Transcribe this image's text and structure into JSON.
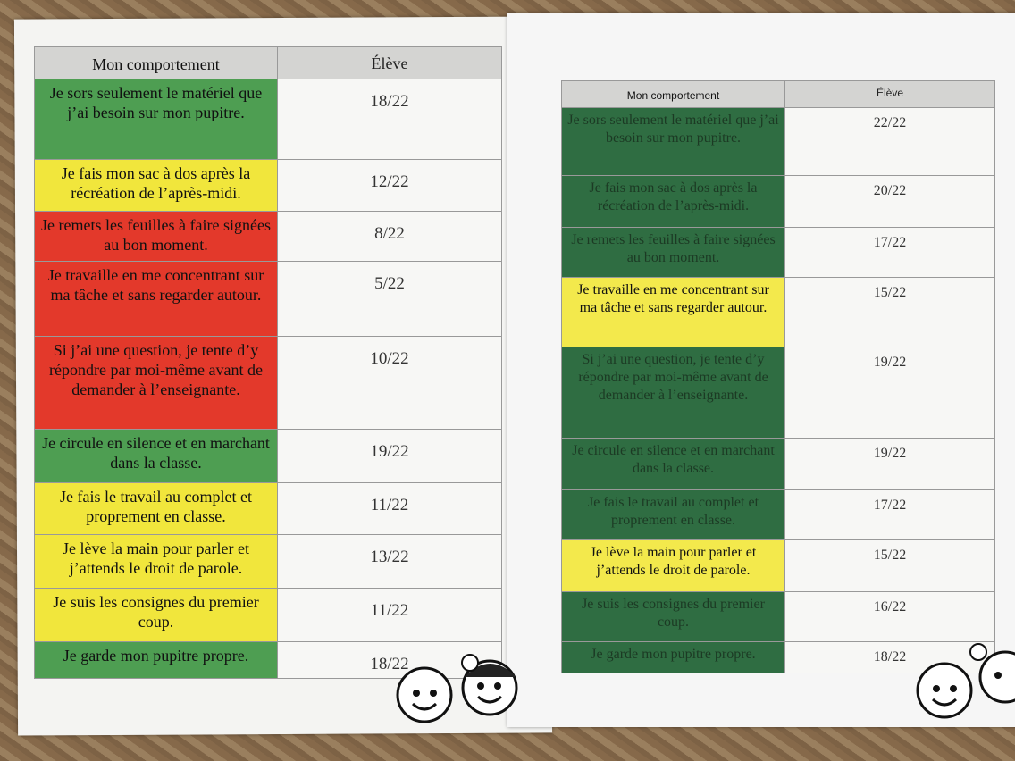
{
  "colors": {
    "green_left": "#4e9e52",
    "yellow": "#f1e63c",
    "red": "#e3392b",
    "green_right": "#2f6d42",
    "yellow_right": "#f3e94c"
  },
  "left_sheet": {
    "headers": {
      "behavior": "Mon comportement",
      "student": "Élève"
    },
    "rows": [
      {
        "behavior": "Je sors seulement le matériel que j’ai besoin sur mon pupitre.",
        "score": "18/22",
        "status": "green"
      },
      {
        "behavior": "Je fais mon sac à dos après la récréation de l’après-midi.",
        "score": "12/22",
        "status": "yellow"
      },
      {
        "behavior": "Je remets les feuilles à faire signées au bon moment.",
        "score": "8/22",
        "status": "red"
      },
      {
        "behavior": "Je travaille en me concentrant sur ma tâche et sans regarder autour.",
        "score": "5/22",
        "status": "red"
      },
      {
        "behavior": "Si j’ai une question, je tente d’y répondre par moi-même avant de demander à l’enseignante.",
        "score": "10/22",
        "status": "red"
      },
      {
        "behavior": "Je circule en silence et en marchant dans la classe.",
        "score": "19/22",
        "status": "green"
      },
      {
        "behavior": "Je fais le travail au complet et proprement en classe.",
        "score": "11/22",
        "status": "yellow"
      },
      {
        "behavior": "Je lève la main pour parler et j’attends le droit de parole.",
        "score": "13/22",
        "status": "yellow"
      },
      {
        "behavior": "Je suis les consignes du premier coup.",
        "score": "11/22",
        "status": "yellow"
      },
      {
        "behavior": "Je garde mon pupitre propre.",
        "score": "18/22",
        "status": "green"
      }
    ]
  },
  "right_sheet": {
    "headers": {
      "behavior": "Mon comportement",
      "student": "Élève"
    },
    "rows": [
      {
        "behavior": "Je sors seulement le matériel que j’ai besoin sur mon pupitre.",
        "score": "22/22",
        "status": "green"
      },
      {
        "behavior": "Je fais mon sac à dos après la récréation de l’après-midi.",
        "score": "20/22",
        "status": "green"
      },
      {
        "behavior": "Je remets les feuilles à faire signées au bon moment.",
        "score": "17/22",
        "status": "green"
      },
      {
        "behavior": "Je travaille en me concentrant sur ma tâche et sans regarder autour.",
        "score": "15/22",
        "status": "yellow"
      },
      {
        "behavior": "Si j’ai une question, je tente d’y répondre par moi-même avant de demander à l’enseignante.",
        "score": "19/22",
        "status": "green"
      },
      {
        "behavior": "Je circule en silence et en marchant dans la classe.",
        "score": "19/22",
        "status": "green"
      },
      {
        "behavior": "Je fais le travail au complet et proprement en classe.",
        "score": "17/22",
        "status": "green"
      },
      {
        "behavior": "Je lève la main pour parler et j’attends le droit de parole.",
        "score": "15/22",
        "status": "yellow"
      },
      {
        "behavior": "Je suis les consignes du premier coup.",
        "score": "16/22",
        "status": "green"
      },
      {
        "behavior": "Je garde mon pupitre propre.",
        "score": "18/22",
        "status": "green"
      }
    ]
  }
}
